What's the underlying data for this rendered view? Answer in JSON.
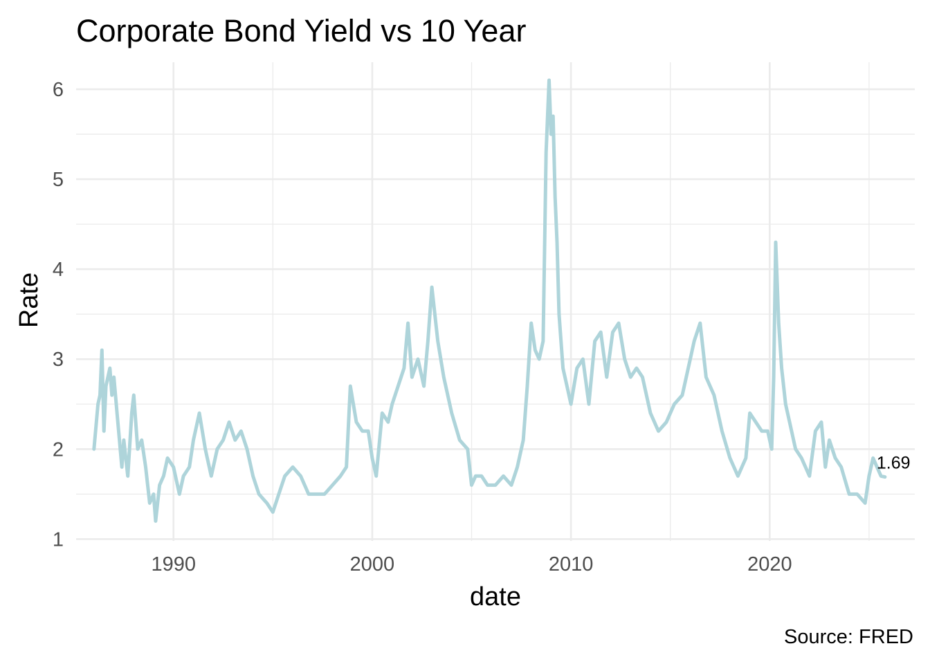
{
  "chart_data": {
    "type": "line",
    "title": "Corporate Bond Yield vs 10 Year",
    "xlabel": "date",
    "ylabel": "Rate",
    "caption": "Source: FRED",
    "end_label": "1.69",
    "xlim": [
      1985.1,
      2027.3
    ],
    "ylim": [
      0.98,
      6.3
    ],
    "x_ticks": [
      1990,
      2000,
      2010,
      2020
    ],
    "y_ticks": [
      1,
      2,
      3,
      4,
      5,
      6
    ],
    "grid": true,
    "legend": "none",
    "line_color": "#aed4da",
    "series": [
      {
        "x": [
          1986.0,
          1986.2,
          1986.3,
          1986.4,
          1986.5,
          1986.6,
          1986.8,
          1986.9,
          1987.0,
          1987.2,
          1987.4,
          1987.5,
          1987.7,
          1987.9,
          1988.0,
          1988.2,
          1988.4,
          1988.6,
          1988.8,
          1989.0,
          1989.1,
          1989.3,
          1989.5,
          1989.7,
          1990.0,
          1990.3,
          1990.5,
          1990.8,
          1991.0,
          1991.3,
          1991.6,
          1991.9,
          1992.2,
          1992.5,
          1992.8,
          1993.1,
          1993.4,
          1993.7,
          1994.0,
          1994.3,
          1994.7,
          1995.0,
          1995.3,
          1995.6,
          1996.0,
          1996.4,
          1996.8,
          1997.2,
          1997.6,
          1998.0,
          1998.4,
          1998.7,
          1998.9,
          1999.2,
          1999.5,
          1999.8,
          2000.0,
          2000.2,
          2000.5,
          2000.8,
          2001.0,
          2001.3,
          2001.6,
          2001.8,
          2002.0,
          2002.3,
          2002.6,
          2002.8,
          2003.0,
          2003.3,
          2003.6,
          2004.0,
          2004.4,
          2004.8,
          2005.0,
          2005.2,
          2005.5,
          2005.8,
          2006.2,
          2006.6,
          2007.0,
          2007.3,
          2007.6,
          2007.8,
          2008.0,
          2008.2,
          2008.4,
          2008.6,
          2008.75,
          2008.9,
          2009.0,
          2009.1,
          2009.2,
          2009.3,
          2009.4,
          2009.6,
          2009.8,
          2010.0,
          2010.3,
          2010.6,
          2010.9,
          2011.2,
          2011.5,
          2011.8,
          2012.1,
          2012.4,
          2012.7,
          2013.0,
          2013.3,
          2013.6,
          2014.0,
          2014.4,
          2014.8,
          2015.2,
          2015.6,
          2016.0,
          2016.2,
          2016.5,
          2016.8,
          2017.2,
          2017.6,
          2018.0,
          2018.4,
          2018.8,
          2019.0,
          2019.3,
          2019.6,
          2019.9,
          2020.1,
          2020.2,
          2020.3,
          2020.45,
          2020.6,
          2020.8,
          2021.0,
          2021.3,
          2021.6,
          2022.0,
          2022.3,
          2022.6,
          2022.8,
          2023.0,
          2023.3,
          2023.6,
          2024.0,
          2024.4,
          2024.8,
          2025.0,
          2025.2,
          2025.4,
          2025.6,
          2025.8
        ],
        "y": [
          2.0,
          2.5,
          2.6,
          3.1,
          2.2,
          2.7,
          2.9,
          2.6,
          2.8,
          2.3,
          1.8,
          2.1,
          1.7,
          2.4,
          2.6,
          2.0,
          2.1,
          1.8,
          1.4,
          1.5,
          1.2,
          1.6,
          1.7,
          1.9,
          1.8,
          1.5,
          1.7,
          1.8,
          2.1,
          2.4,
          2.0,
          1.7,
          2.0,
          2.1,
          2.3,
          2.1,
          2.2,
          2.0,
          1.7,
          1.5,
          1.4,
          1.3,
          1.5,
          1.7,
          1.8,
          1.7,
          1.5,
          1.5,
          1.5,
          1.6,
          1.7,
          1.8,
          2.7,
          2.3,
          2.2,
          2.2,
          1.9,
          1.7,
          2.4,
          2.3,
          2.5,
          2.7,
          2.9,
          3.4,
          2.8,
          3.0,
          2.7,
          3.2,
          3.8,
          3.2,
          2.8,
          2.4,
          2.1,
          2.0,
          1.6,
          1.7,
          1.7,
          1.6,
          1.6,
          1.7,
          1.6,
          1.8,
          2.1,
          2.7,
          3.4,
          3.1,
          3.0,
          3.2,
          5.3,
          6.1,
          5.5,
          5.7,
          4.8,
          4.3,
          3.5,
          2.9,
          2.7,
          2.5,
          2.9,
          3.0,
          2.5,
          3.2,
          3.3,
          2.8,
          3.3,
          3.4,
          3.0,
          2.8,
          2.9,
          2.8,
          2.4,
          2.2,
          2.3,
          2.5,
          2.6,
          3.0,
          3.2,
          3.4,
          2.8,
          2.6,
          2.2,
          1.9,
          1.7,
          1.9,
          2.4,
          2.3,
          2.2,
          2.2,
          2.0,
          2.8,
          4.3,
          3.4,
          2.9,
          2.5,
          2.3,
          2.0,
          1.9,
          1.7,
          2.2,
          2.3,
          1.8,
          2.1,
          1.9,
          1.8,
          1.5,
          1.5,
          1.4,
          1.7,
          1.9,
          1.8,
          1.7,
          1.69
        ]
      }
    ]
  }
}
